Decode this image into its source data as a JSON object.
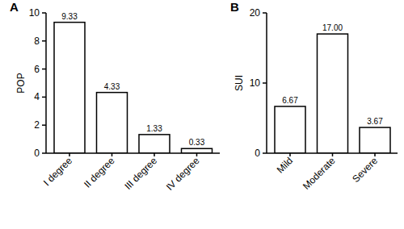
{
  "chart_data": [
    {
      "type": "bar",
      "title": "A",
      "y_label": "POP",
      "categories": [
        "I degree",
        "II degree",
        "III degree",
        "IV degree"
      ],
      "values": [
        9.33,
        4.33,
        1.33,
        0.33
      ],
      "value_labels": [
        "9.33",
        "4.33",
        "1.33",
        "0.33"
      ],
      "color": "#ffffff",
      "ylim": [
        0,
        10
      ],
      "yticks": [
        0,
        2,
        4,
        6,
        8,
        10
      ],
      "grid": false,
      "data_labels": true
    },
    {
      "type": "bar",
      "title": "B",
      "y_label": "SUI",
      "categories": [
        "Mild",
        "Moderate",
        "Severe"
      ],
      "values": [
        6.67,
        17.0,
        3.67
      ],
      "value_labels": [
        "6.67",
        "17.00",
        "3.67"
      ],
      "color": "#ffffff",
      "ylim": [
        0,
        20
      ],
      "yticks": [
        0,
        10,
        20
      ],
      "grid": false,
      "data_labels": true
    }
  ]
}
